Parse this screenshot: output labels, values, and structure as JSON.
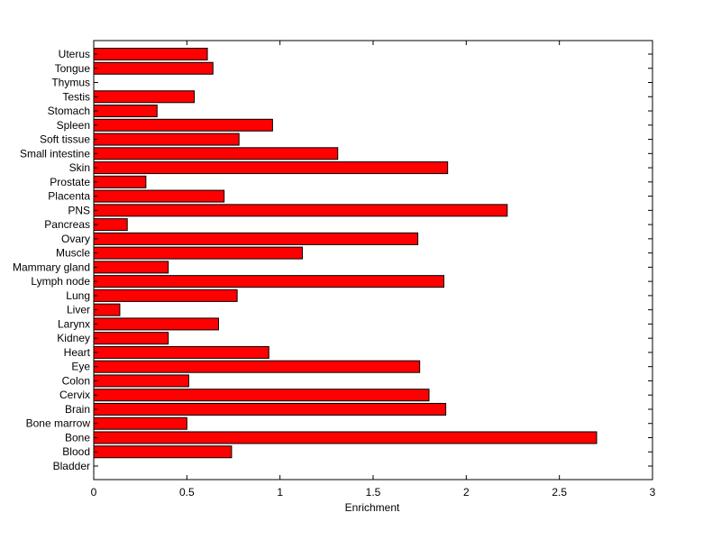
{
  "chart_data": {
    "type": "bar",
    "orientation": "horizontal",
    "title": "",
    "xlabel": "Enrichment",
    "ylabel": "",
    "xlim": [
      0,
      3
    ],
    "xticks": [
      "0",
      "0.5",
      "1",
      "1.5",
      "2",
      "2.5",
      "3"
    ],
    "grid": false,
    "bar_color": "#ff0000",
    "categories": [
      "Bladder",
      "Blood",
      "Bone",
      "Bone marrow",
      "Brain",
      "Cervix",
      "Colon",
      "Eye",
      "Heart",
      "Kidney",
      "Larynx",
      "Liver",
      "Lung",
      "Lymph node",
      "Mammary gland",
      "Muscle",
      "Ovary",
      "Pancreas",
      "PNS",
      "Placenta",
      "Prostate",
      "Skin",
      "Small intestine",
      "Soft tissue",
      "Spleen",
      "Stomach",
      "Testis",
      "Thymus",
      "Tongue",
      "Uterus"
    ],
    "values": [
      0,
      0.74,
      2.7,
      0.5,
      1.89,
      1.8,
      0.51,
      1.75,
      0.94,
      0.4,
      0.67,
      0.14,
      0.77,
      1.88,
      0.4,
      1.12,
      1.74,
      0.18,
      2.22,
      0.7,
      0.28,
      1.9,
      1.31,
      0.78,
      0.96,
      0.34,
      0.54,
      0,
      0.64,
      0.61
    ]
  }
}
